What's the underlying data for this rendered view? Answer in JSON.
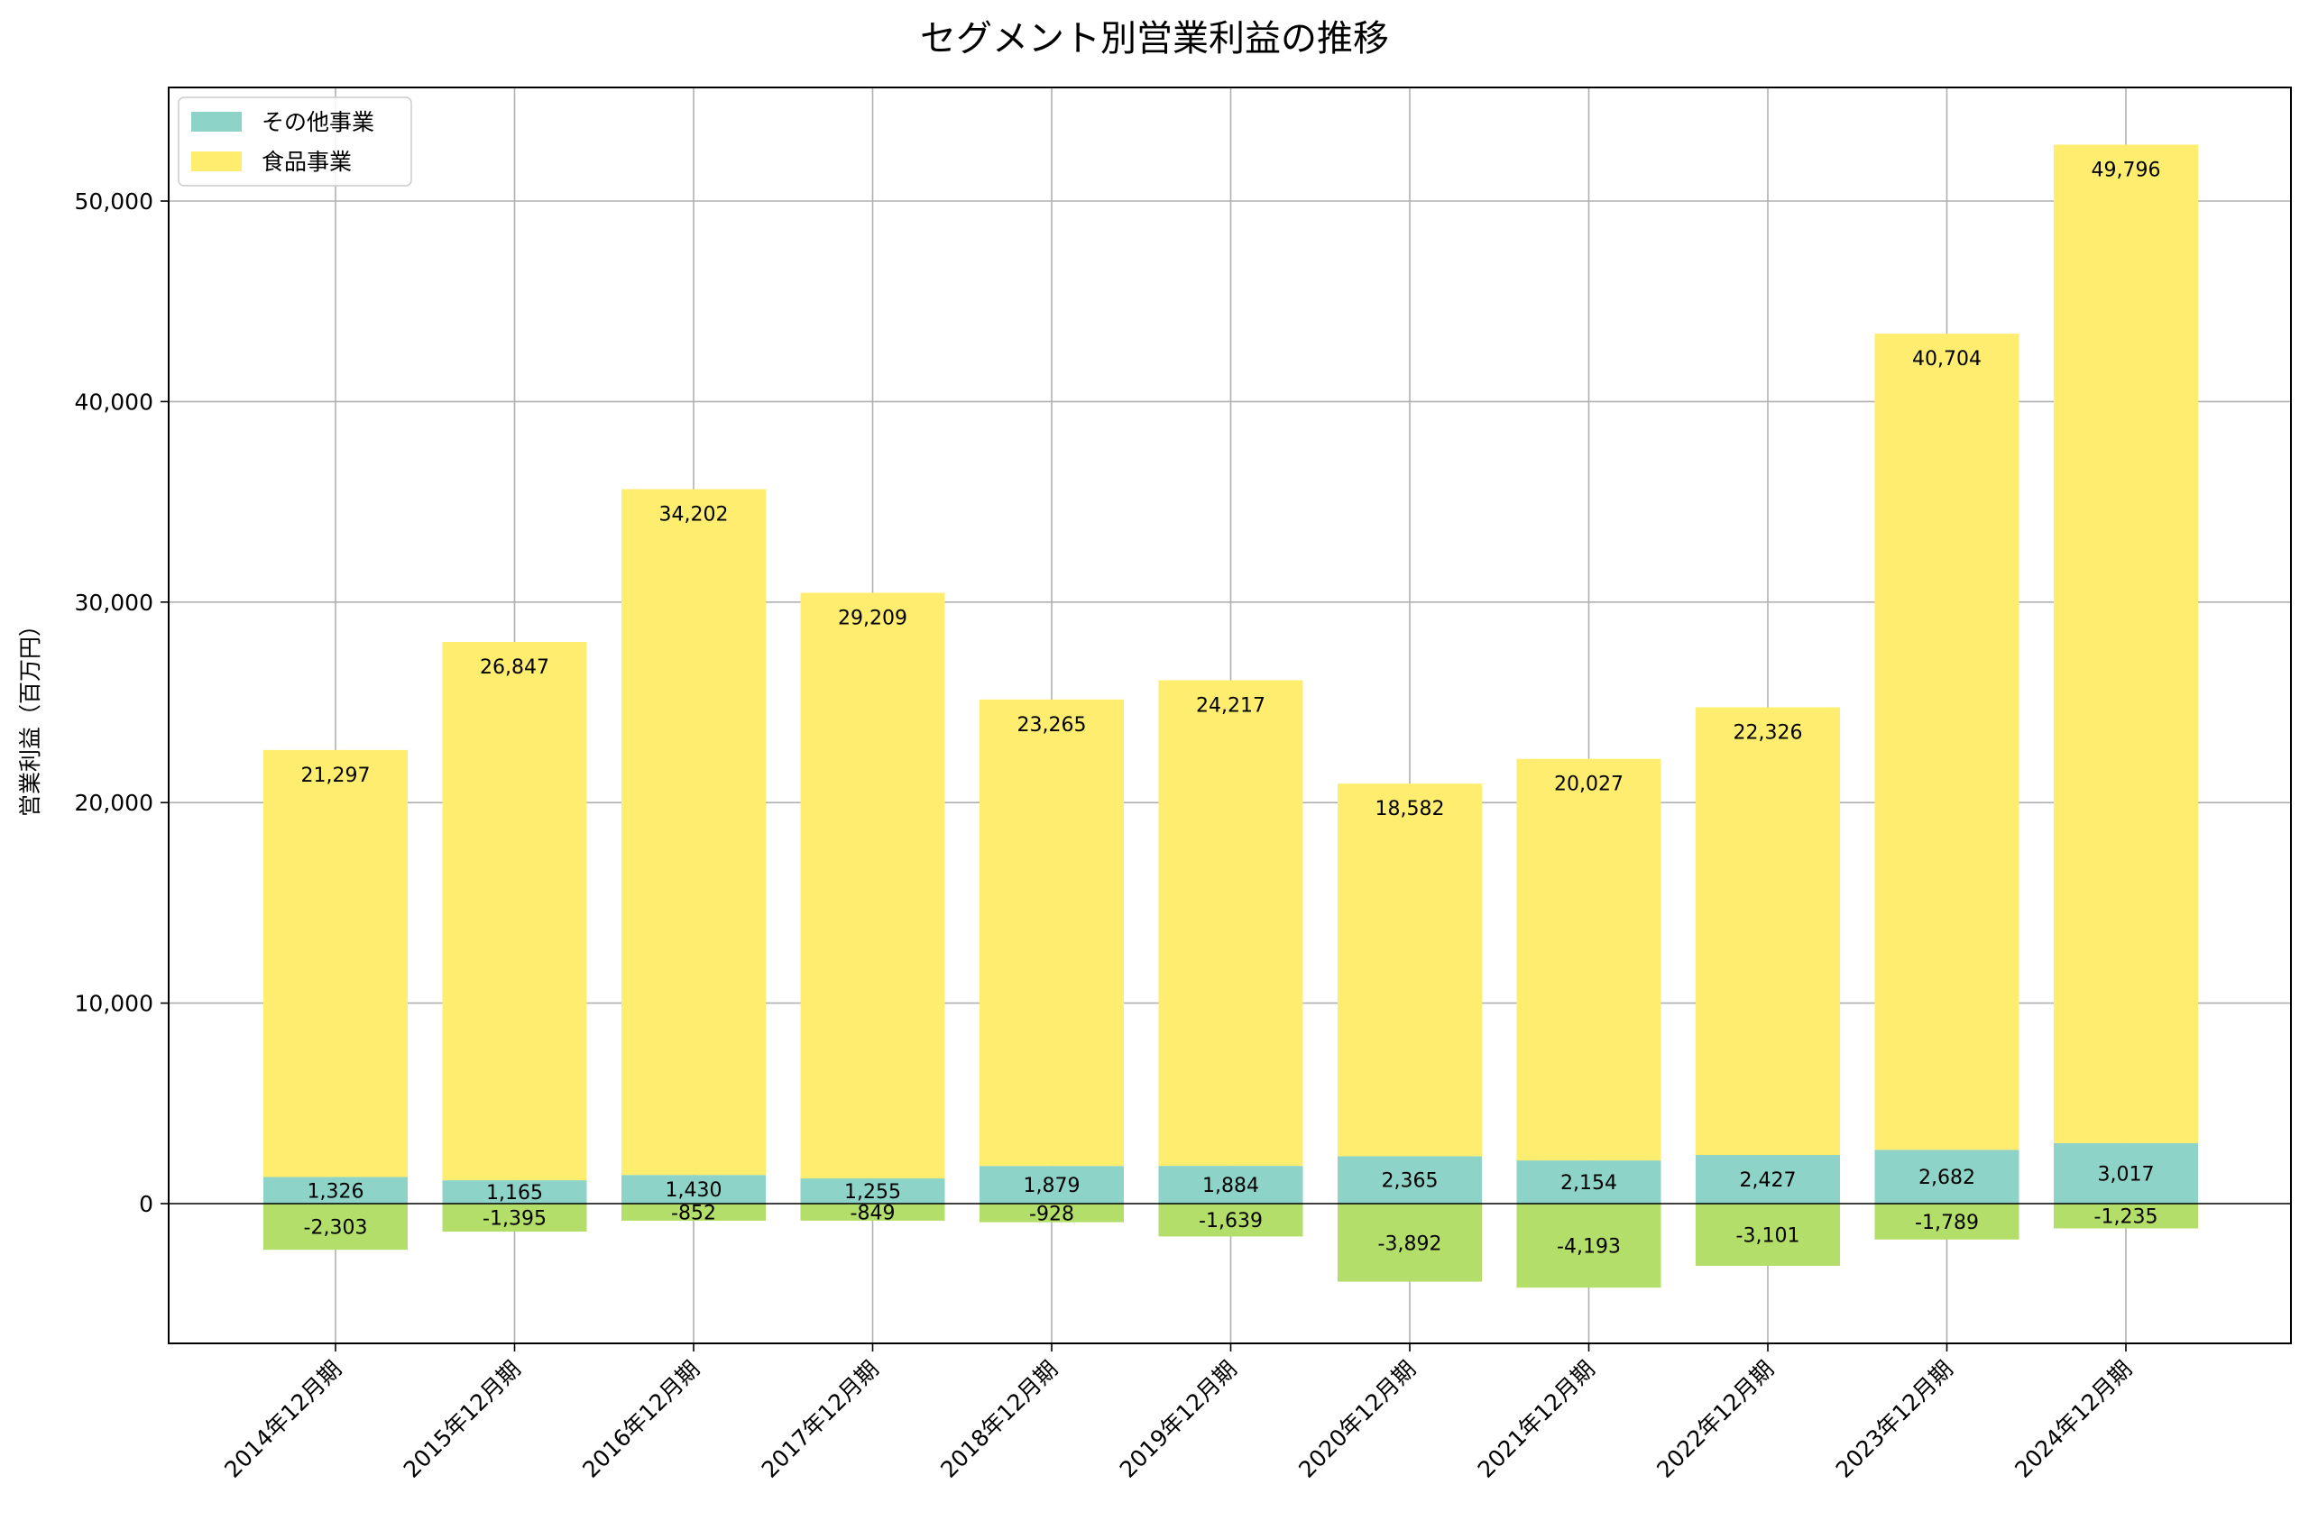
{
  "chart_data": {
    "type": "bar",
    "title": "セグメント別営業利益の推移",
    "xlabel": "",
    "ylabel": "営業利益（百万円）",
    "ylim": [
      -7000,
      56000
    ],
    "yticks": [
      0,
      10000,
      20000,
      30000,
      40000,
      50000
    ],
    "ytick_labels": [
      "0",
      "10,000",
      "20,000",
      "30,000",
      "40,000",
      "50,000"
    ],
    "grid": true,
    "legend_position": "top-left",
    "categories": [
      "2014年12月期",
      "2015年12月期",
      "2016年12月期",
      "2017年12月期",
      "2018年12月期",
      "2019年12月期",
      "2020年12月期",
      "2021年12月期",
      "2022年12月期",
      "2023年12月期",
      "2024年12月期"
    ],
    "series": [
      {
        "name": "その他事業",
        "color": "#8dd3c7",
        "values": [
          1326,
          1165,
          1430,
          1255,
          1879,
          1884,
          2365,
          2154,
          2427,
          2682,
          3017
        ],
        "labels": [
          "1,326",
          "1,165",
          "1,430",
          "1,255",
          "1,879",
          "1,884",
          "2,365",
          "2,154",
          "2,427",
          "2,682",
          "3,017"
        ]
      },
      {
        "name": "食品事業",
        "color": "#ffed6f",
        "values": [
          21297,
          26847,
          34202,
          29209,
          23265,
          24217,
          18582,
          20027,
          22326,
          40704,
          49796
        ],
        "labels": [
          "21,297",
          "26,847",
          "34,202",
          "29,209",
          "23,265",
          "24,217",
          "18,582",
          "20,027",
          "22,326",
          "40,704",
          "49,796"
        ]
      },
      {
        "color": "#b3de69",
        "values": [
          -2303,
          -1395,
          -852,
          -849,
          -928,
          -1639,
          -3892,
          -4193,
          -3101,
          -1789,
          -1235
        ],
        "labels": [
          "-2,303",
          "-1,395",
          "-852",
          "-849",
          "-928",
          "-1,639",
          "-3,892",
          "-4,193",
          "-3,101",
          "-1,789",
          "-1,235"
        ]
      }
    ]
  }
}
